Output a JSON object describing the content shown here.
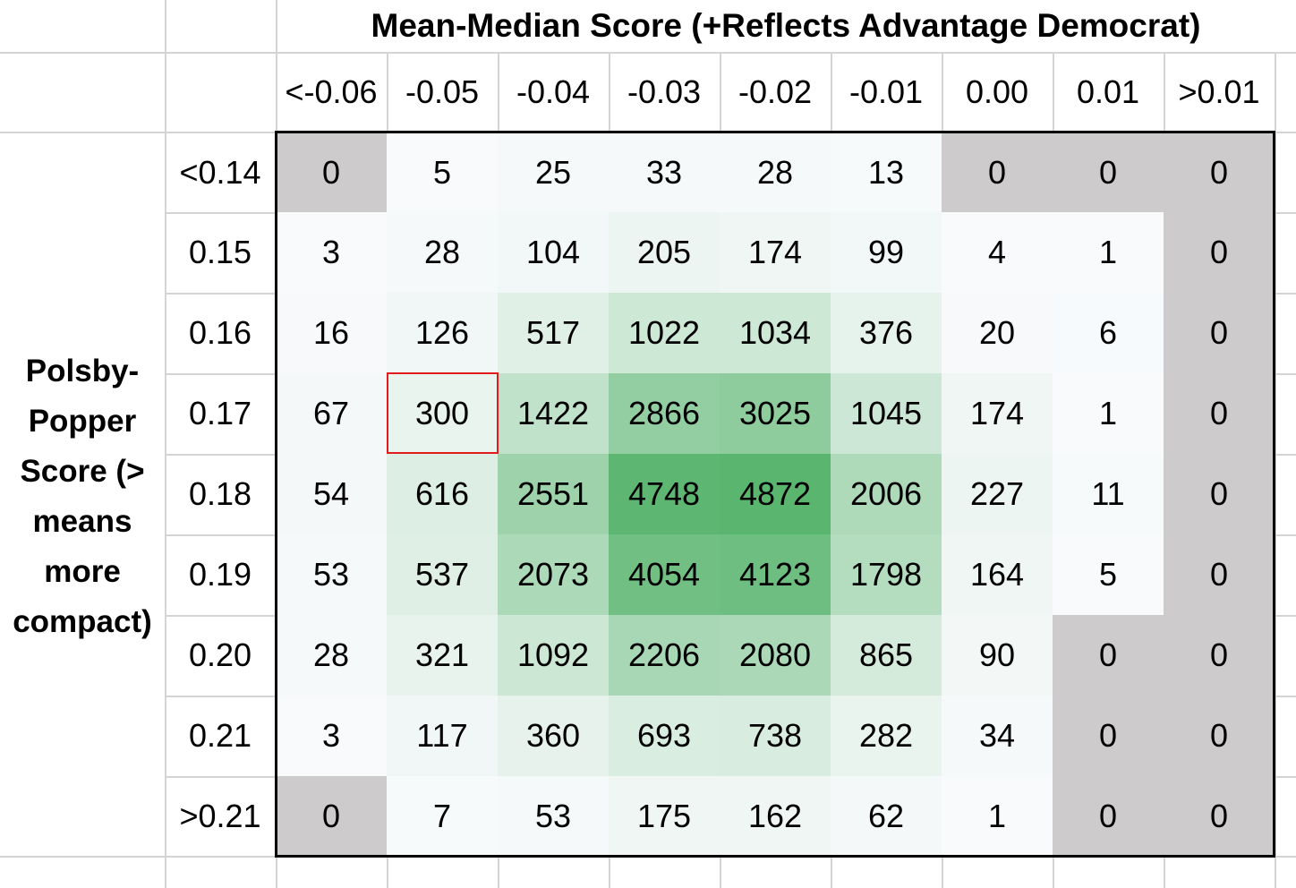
{
  "chart_data": {
    "type": "heatmap",
    "title": "Mean-Median Score (+Reflects Advantage Democrat)",
    "ylabel": "Polsby-Popper Score (> means more compact)",
    "x_categories": [
      "<-0.06",
      "-0.05",
      "-0.04",
      "-0.03",
      "-0.02",
      "-0.01",
      "0.00",
      "0.01",
      ">0.01"
    ],
    "y_categories": [
      "<0.14",
      "0.15",
      "0.16",
      "0.17",
      "0.18",
      "0.19",
      "0.20",
      "0.21",
      ">0.21"
    ],
    "values": [
      [
        0,
        5,
        25,
        33,
        28,
        13,
        0,
        0,
        0
      ],
      [
        3,
        28,
        104,
        205,
        174,
        99,
        4,
        1,
        0
      ],
      [
        16,
        126,
        517,
        1022,
        1034,
        376,
        20,
        6,
        0
      ],
      [
        67,
        300,
        1422,
        2866,
        3025,
        1045,
        174,
        1,
        0
      ],
      [
        54,
        616,
        2551,
        4748,
        4872,
        2006,
        227,
        11,
        0
      ],
      [
        53,
        537,
        2073,
        4054,
        4123,
        1798,
        164,
        5,
        0
      ],
      [
        28,
        321,
        1092,
        2206,
        2080,
        865,
        90,
        0,
        0
      ],
      [
        3,
        117,
        360,
        693,
        738,
        282,
        34,
        0,
        0
      ],
      [
        0,
        7,
        53,
        175,
        162,
        62,
        1,
        0,
        0
      ]
    ],
    "color_scale": {
      "low": "#f8fafc",
      "high": "#5ab56e",
      "zero": "#cdcbcb"
    },
    "highlighted_cell": {
      "row": "0.17",
      "col": "-0.05",
      "color": "#e31a1c"
    }
  }
}
